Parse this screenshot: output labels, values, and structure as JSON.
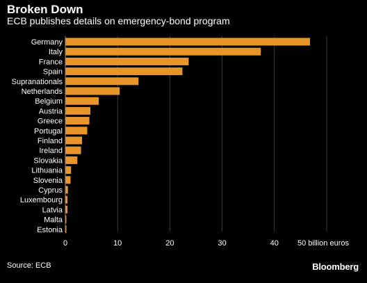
{
  "title": "Broken Down",
  "subtitle": "ECB publishes details on emergency-bond program",
  "source": "Source: ECB",
  "brand": "Bloomberg",
  "bar_color": "#e8952a",
  "chart_data": {
    "type": "bar",
    "orientation": "horizontal",
    "categories": [
      "Germany",
      "Italy",
      "France",
      "Spain",
      "Supranationals",
      "Netherlands",
      "Belgium",
      "Austria",
      "Greece",
      "Portugal",
      "Finland",
      "Ireland",
      "Slovakia",
      "Lithuania",
      "Slovenia",
      "Cyprus",
      "Luxembourg",
      "Latvia",
      "Malta",
      "Estonia"
    ],
    "values": [
      46.8,
      37.4,
      23.6,
      22.4,
      14.0,
      10.4,
      6.4,
      4.8,
      4.6,
      4.2,
      3.2,
      3.0,
      2.3,
      1.1,
      1.0,
      0.5,
      0.4,
      0.4,
      0.2,
      0.2
    ],
    "xlim": [
      0,
      50
    ],
    "xticks": [
      0,
      10,
      20,
      30,
      40,
      50
    ],
    "xtick_labels": [
      "0",
      "10",
      "20",
      "30",
      "40",
      "50 billion euros"
    ],
    "grid": true
  }
}
